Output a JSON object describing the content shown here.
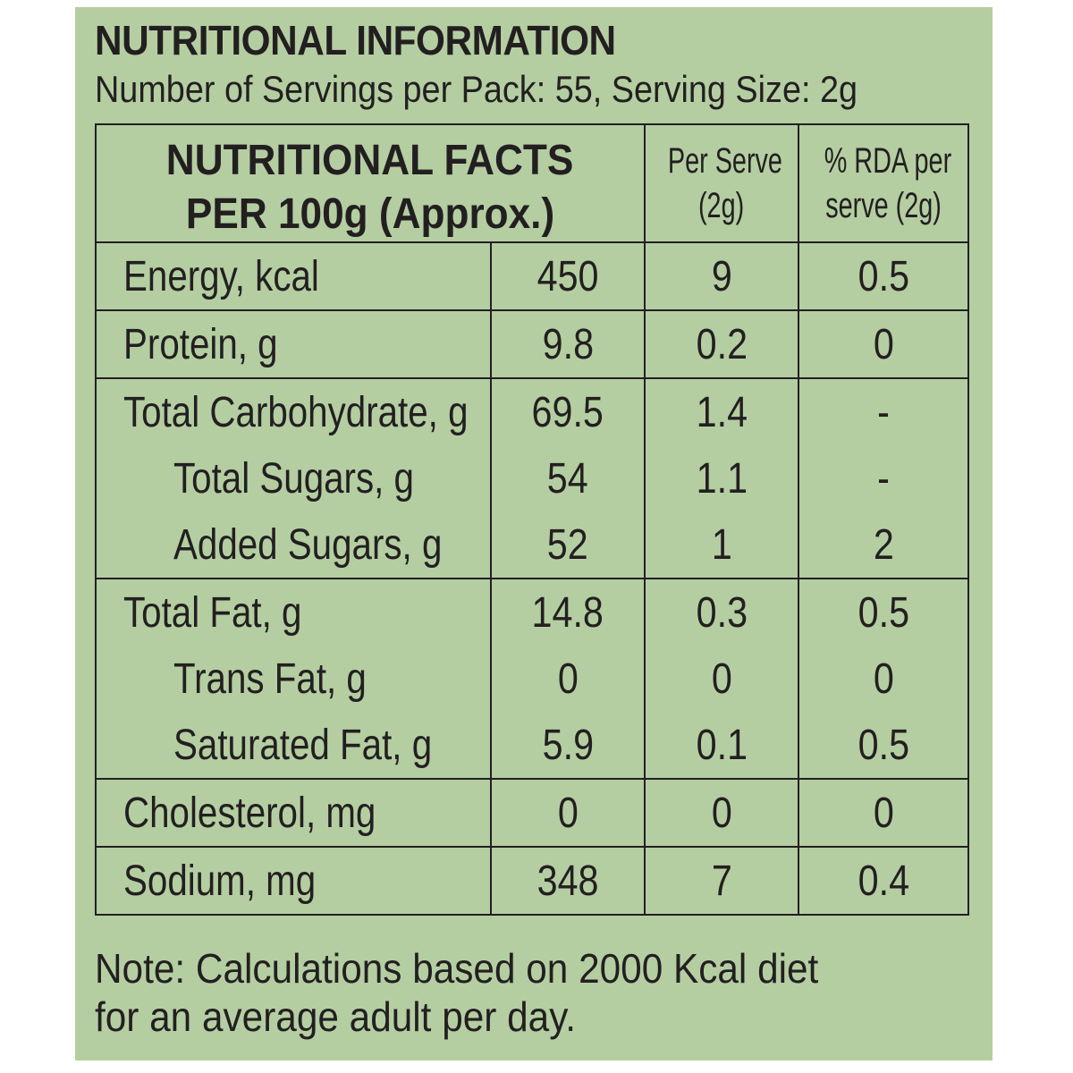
{
  "title": "NUTRITIONAL INFORMATION",
  "subtitle": "Number of Servings per Pack: 55, Serving Size: 2g",
  "header": {
    "facts_line1": "NUTRITIONAL FACTS",
    "facts_line2": "PER 100g (Approx.)",
    "per_serve_line1": "Per Serve",
    "per_serve_line2": "(2g)",
    "rda_line1": "% RDA per",
    "rda_line2": "serve (2g)"
  },
  "rows": [
    {
      "label": "Energy, kcal",
      "per100": "450",
      "serve": "9",
      "rda": "0.5"
    },
    {
      "label": "Protein, g",
      "per100": "9.8",
      "serve": "0.2",
      "rda": "0"
    },
    {
      "label": "Total Carbohydrate, g",
      "per100": "69.5",
      "serve": "1.4",
      "rda": "-"
    },
    {
      "label": "Total Sugars, g",
      "per100": "54",
      "serve": "1.1",
      "rda": "-"
    },
    {
      "label": "Added Sugars, g",
      "per100": "52",
      "serve": "1",
      "rda": "2"
    },
    {
      "label": "Total Fat, g",
      "per100": "14.8",
      "serve": "0.3",
      "rda": "0.5"
    },
    {
      "label": "Trans Fat, g",
      "per100": "0",
      "serve": "0",
      "rda": "0"
    },
    {
      "label": "Saturated Fat, g",
      "per100": "5.9",
      "serve": "0.1",
      "rda": "0.5"
    },
    {
      "label": "Cholesterol, mg",
      "per100": "0",
      "serve": "0",
      "rda": "0"
    },
    {
      "label": "Sodium, mg",
      "per100": "348",
      "serve": "7",
      "rda": "0.4"
    }
  ],
  "note_line1": "Note: Calculations based on 2000 Kcal diet",
  "note_line2": "for an average adult per day.",
  "colors": {
    "background": "#b4cea2",
    "text": "#231f20"
  }
}
